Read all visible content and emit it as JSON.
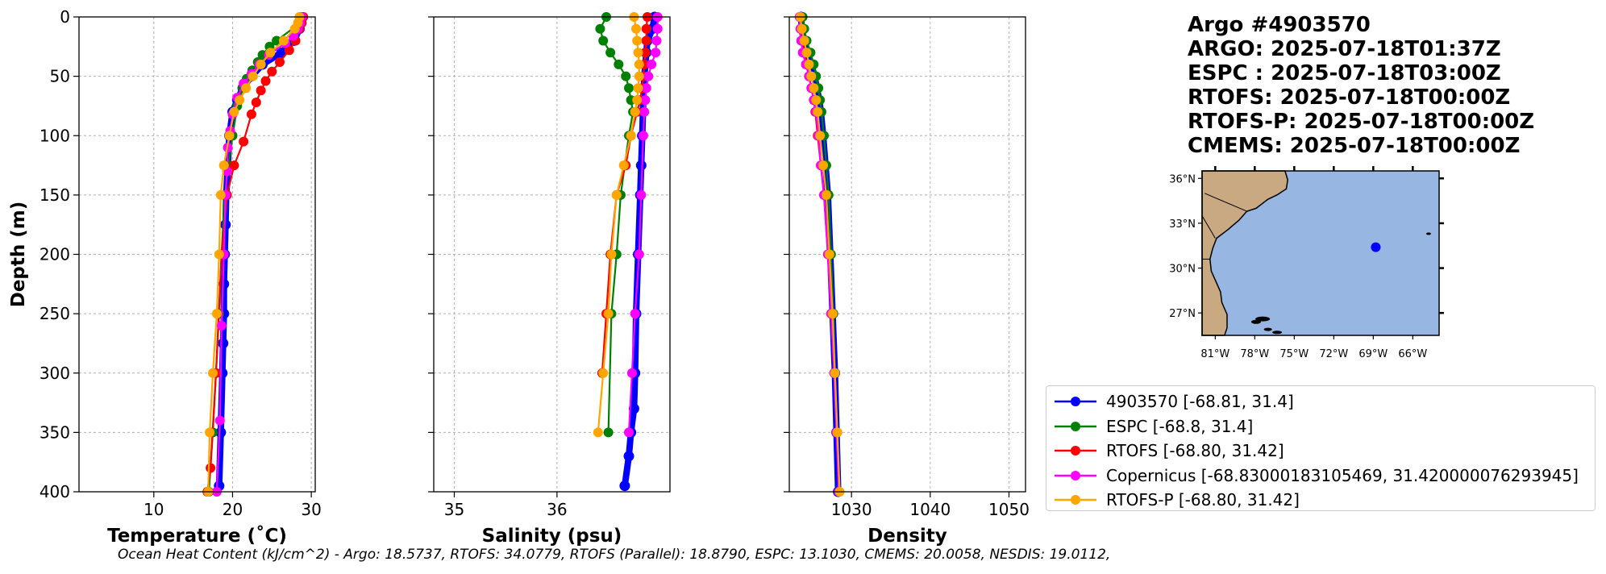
{
  "chart_data": [
    {
      "type": "line",
      "xlabel": "Temperature (˚C)",
      "ylabel": "Depth (m)",
      "xlim": [
        0.5,
        30.5
      ],
      "ylim": [
        400,
        0
      ],
      "xticks": [
        10,
        20,
        30
      ],
      "yticks": [
        0,
        50,
        100,
        150,
        200,
        250,
        300,
        350,
        400
      ],
      "grid": true,
      "series": [
        {
          "name": "4903570",
          "color": "#0000ff",
          "x": [
            28.6,
            28.5,
            27.8,
            26.2,
            23.8,
            22.4,
            21.3,
            20.6,
            20.0,
            19.6,
            19.4,
            19.2,
            19.1,
            19.0,
            18.9,
            18.9,
            18.8,
            18.7,
            18.5,
            18.3
          ],
          "y": [
            2,
            10,
            20,
            30,
            40,
            50,
            60,
            70,
            80,
            100,
            125,
            150,
            175,
            200,
            225,
            250,
            275,
            300,
            350,
            395
          ]
        },
        {
          "name": "ESPC",
          "color": "#008000",
          "x": [
            28.7,
            28.6,
            25.6,
            24.7,
            23.8,
            23.2,
            22.5,
            21.8,
            21.3,
            20.6,
            20.0,
            19.5,
            19.0,
            18.6,
            18.3,
            17.9,
            17.5,
            17.0
          ],
          "y": [
            0,
            5,
            20,
            25,
            32,
            38,
            45,
            52,
            60,
            75,
            100,
            125,
            150,
            200,
            250,
            300,
            350,
            400
          ]
        },
        {
          "name": "RTOFS",
          "color": "#ff0000",
          "x": [
            29.0,
            28.8,
            28.5,
            28.0,
            27.2,
            26.0,
            25.0,
            24.2,
            23.6,
            23.0,
            22.4,
            21.4,
            20.2,
            19.3,
            18.6,
            17.9,
            17.2,
            16.8
          ],
          "y": [
            0,
            5,
            10,
            20,
            28,
            38,
            46,
            54,
            62,
            72,
            82,
            105,
            125,
            150,
            200,
            300,
            380,
            400
          ]
        },
        {
          "name": "Copernicus",
          "color": "#ff00ff",
          "x": [
            28.8,
            28.6,
            28.3,
            27.7,
            26.7,
            24.6,
            23.4,
            22.4,
            21.4,
            20.6,
            20.0,
            19.7,
            19.4,
            19.3,
            19.1,
            18.9,
            18.6,
            18.4,
            18.0
          ],
          "y": [
            0,
            5,
            10,
            16,
            22,
            32,
            40,
            48,
            56,
            68,
            82,
            96,
            110,
            130,
            150,
            200,
            260,
            340,
            400
          ]
        },
        {
          "name": "RTOFS-P",
          "color": "#ffa500",
          "x": [
            28.5,
            28.3,
            27.9,
            26.5,
            24.8,
            23.6,
            22.6,
            21.7,
            20.9,
            20.2,
            19.6,
            18.9,
            18.5,
            18.3,
            18.0,
            17.5,
            17.1,
            16.9
          ],
          "y": [
            0,
            5,
            10,
            20,
            30,
            40,
            50,
            60,
            70,
            80,
            100,
            125,
            150,
            200,
            250,
            300,
            350,
            400
          ]
        }
      ]
    },
    {
      "type": "line",
      "xlabel": "Salinity (psu)",
      "ylabel": "",
      "xlim": [
        34.8,
        37.1
      ],
      "ylim": [
        400,
        0
      ],
      "xticks": [
        35,
        36
      ],
      "yticks": [
        0,
        50,
        100,
        150,
        200,
        250,
        300,
        350,
        400
      ],
      "grid": true,
      "series": [
        {
          "name": "4903570",
          "color": "#0000ff",
          "x": [
            36.95,
            36.93,
            36.88,
            36.87,
            36.85,
            36.84,
            36.83,
            36.82,
            36.81,
            36.79,
            36.77,
            36.76,
            36.75,
            36.72,
            36.7,
            36.66
          ],
          "y": [
            0,
            10,
            20,
            30,
            50,
            70,
            100,
            125,
            150,
            200,
            250,
            300,
            330,
            350,
            370,
            395
          ]
        },
        {
          "name": "ESPC",
          "color": "#008000",
          "x": [
            36.48,
            36.42,
            36.45,
            36.52,
            36.6,
            36.67,
            36.7,
            36.72,
            36.74,
            36.7,
            36.66,
            36.62,
            36.58,
            36.53,
            36.5
          ],
          "y": [
            0,
            10,
            20,
            30,
            40,
            50,
            60,
            70,
            80,
            100,
            125,
            150,
            200,
            250,
            350
          ]
        },
        {
          "name": "RTOFS",
          "color": "#ff0000",
          "x": [
            36.88,
            36.87,
            36.87,
            36.86,
            36.85,
            36.84,
            36.83,
            36.81,
            36.78,
            36.72,
            36.67,
            36.58,
            36.52,
            36.48,
            36.44
          ],
          "y": [
            0,
            10,
            20,
            30,
            40,
            50,
            60,
            70,
            80,
            100,
            125,
            150,
            200,
            250,
            300
          ]
        },
        {
          "name": "Copernicus",
          "color": "#ff00ff",
          "x": [
            36.98,
            36.98,
            36.97,
            36.96,
            36.92,
            36.89,
            36.87,
            36.86,
            36.85,
            36.84,
            36.82,
            36.8,
            36.76,
            36.73,
            36.7
          ],
          "y": [
            0,
            10,
            20,
            30,
            40,
            50,
            60,
            70,
            80,
            100,
            150,
            200,
            250,
            300,
            350
          ]
        },
        {
          "name": "RTOFS-P",
          "color": "#ffa500",
          "x": [
            36.75,
            36.77,
            36.78,
            36.79,
            36.8,
            36.8,
            36.79,
            36.78,
            36.76,
            36.72,
            36.65,
            36.58,
            36.53,
            36.5,
            36.45,
            36.4
          ],
          "y": [
            0,
            10,
            20,
            30,
            40,
            50,
            60,
            70,
            80,
            100,
            125,
            150,
            200,
            250,
            300,
            350
          ]
        }
      ]
    },
    {
      "type": "line",
      "xlabel": "Density",
      "ylabel": "",
      "xlim": [
        1022.1,
        1052.1
      ],
      "ylim": [
        400,
        0
      ],
      "xticks": [
        1030,
        1040,
        1050
      ],
      "yticks": [
        0,
        50,
        100,
        150,
        200,
        250,
        300,
        350,
        400
      ],
      "grid": true,
      "series": [
        {
          "name": "4903570",
          "color": "#0000ff",
          "x": [
            1023.6,
            1023.7,
            1023.9,
            1024.3,
            1024.9,
            1025.3,
            1025.6,
            1025.9,
            1026.1,
            1026.4,
            1026.7,
            1027.0,
            1027.3,
            1027.6,
            1027.9,
            1028.1,
            1028.3
          ],
          "y": [
            0,
            10,
            20,
            30,
            40,
            50,
            60,
            70,
            80,
            100,
            125,
            150,
            200,
            250,
            300,
            350,
            400
          ]
        },
        {
          "name": "ESPC",
          "color": "#008000",
          "x": [
            1023.8,
            1024.0,
            1024.3,
            1024.8,
            1025.2,
            1025.5,
            1025.8,
            1026.0,
            1026.2,
            1026.5,
            1026.8,
            1027.1,
            1027.4,
            1027.7,
            1027.9,
            1028.2,
            1028.4
          ],
          "y": [
            0,
            10,
            20,
            30,
            40,
            50,
            60,
            70,
            80,
            100,
            125,
            150,
            200,
            250,
            300,
            350,
            400
          ]
        },
        {
          "name": "RTOFS",
          "color": "#ff0000",
          "x": [
            1023.5,
            1023.6,
            1023.8,
            1024.0,
            1024.3,
            1024.6,
            1024.9,
            1025.2,
            1025.4,
            1025.7,
            1026.1,
            1026.5,
            1027.0,
            1027.4,
            1027.8,
            1028.1,
            1028.4
          ],
          "y": [
            0,
            10,
            20,
            30,
            40,
            50,
            60,
            70,
            80,
            100,
            125,
            150,
            200,
            250,
            300,
            350,
            400
          ]
        },
        {
          "name": "Copernicus",
          "color": "#ff00ff",
          "x": [
            1023.4,
            1023.5,
            1023.6,
            1023.8,
            1024.2,
            1024.6,
            1024.9,
            1025.2,
            1025.5,
            1025.8,
            1026.1,
            1026.5,
            1027.0,
            1027.4,
            1027.8,
            1028.1,
            1028.4
          ],
          "y": [
            0,
            10,
            20,
            30,
            40,
            50,
            60,
            70,
            80,
            100,
            125,
            150,
            200,
            250,
            300,
            350,
            400
          ]
        },
        {
          "name": "RTOFS-P",
          "color": "#ffa500",
          "x": [
            1023.5,
            1023.7,
            1024.0,
            1024.3,
            1024.6,
            1024.9,
            1025.2,
            1025.5,
            1025.7,
            1026.0,
            1026.4,
            1026.8,
            1027.2,
            1027.6,
            1027.9,
            1028.2,
            1028.5
          ],
          "y": [
            0,
            10,
            20,
            30,
            40,
            50,
            60,
            70,
            80,
            100,
            125,
            150,
            200,
            250,
            300,
            350,
            400
          ]
        }
      ]
    }
  ],
  "info": {
    "title": "Argo #4903570",
    "lines": [
      "ARGO: 2025-07-18T01:37Z",
      "ESPC : 2025-07-18T03:00Z",
      "RTOFS: 2025-07-18T00:00Z",
      "RTOFS-P: 2025-07-18T00:00Z",
      "CMEMS: 2025-07-18T00:00Z"
    ]
  },
  "map": {
    "lat_ticks": [
      "36°N",
      "33°N",
      "30°N",
      "27°N"
    ],
    "lon_ticks": [
      "81°W",
      "78°W",
      "75°W",
      "72°W",
      "69°W",
      "66°W"
    ],
    "point": {
      "lon": -68.81,
      "lat": 31.4
    },
    "extent": {
      "lon_min": -82.0,
      "lon_max": -64.0,
      "lat_min": 25.5,
      "lat_max": 36.5
    },
    "ocean_color": "#97b6e1",
    "land_color": "#c9a981",
    "point_color": "#0000ff"
  },
  "legend": [
    {
      "label": "4903570 [-68.81, 31.4]",
      "color": "#0000ff"
    },
    {
      "label": "ESPC [-68.8, 31.4]",
      "color": "#008000"
    },
    {
      "label": "RTOFS [-68.80, 31.42]",
      "color": "#ff0000"
    },
    {
      "label": "Copernicus [-68.83000183105469, 31.420000076293945]",
      "color": "#ff00ff"
    },
    {
      "label": "RTOFS-P [-68.80, 31.42]",
      "color": "#ffa500"
    }
  ],
  "footer": "Ocean Heat Content (kJ/cm^2) - Argo: 18.5737,  RTOFS: 34.0779,  RTOFS (Parallel): 18.8790,  ESPC: 13.1030,  CMEMS: 20.0058,  NESDIS: 19.0112,"
}
